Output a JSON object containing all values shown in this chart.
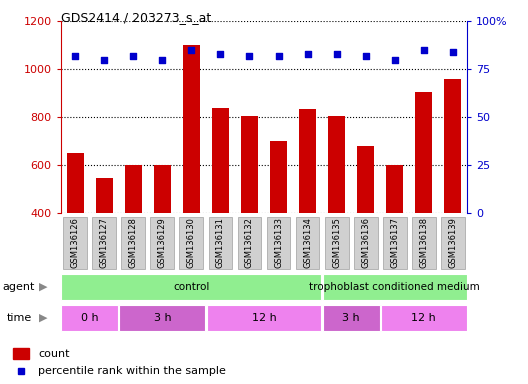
{
  "title": "GDS2414 / 203273_s_at",
  "samples": [
    "GSM136126",
    "GSM136127",
    "GSM136128",
    "GSM136129",
    "GSM136130",
    "GSM136131",
    "GSM136132",
    "GSM136133",
    "GSM136134",
    "GSM136135",
    "GSM136136",
    "GSM136137",
    "GSM136138",
    "GSM136139"
  ],
  "counts": [
    650,
    545,
    600,
    600,
    1100,
    840,
    805,
    700,
    835,
    805,
    680,
    600,
    905,
    960
  ],
  "percentile_ranks": [
    82,
    80,
    82,
    80,
    85,
    83,
    82,
    82,
    83,
    83,
    82,
    80,
    85,
    84
  ],
  "ylim_left": [
    400,
    1200
  ],
  "ylim_right": [
    0,
    100
  ],
  "yticks_left": [
    400,
    600,
    800,
    1000,
    1200
  ],
  "yticks_right": [
    0,
    25,
    50,
    75,
    100
  ],
  "ytick_labels_right": [
    "0",
    "25",
    "50",
    "75",
    "100%"
  ],
  "bar_color": "#CC0000",
  "dot_color": "#0000CC",
  "agent_groups": [
    {
      "label": "control",
      "start": 0,
      "end": 9,
      "color": "#90EE90"
    },
    {
      "label": "trophoblast conditioned medium",
      "start": 9,
      "end": 14,
      "color": "#90EE90"
    }
  ],
  "time_groups": [
    {
      "label": "0 h",
      "start": 0,
      "end": 2,
      "color": "#EE82EE"
    },
    {
      "label": "3 h",
      "start": 2,
      "end": 5,
      "color": "#CC66CC"
    },
    {
      "label": "12 h",
      "start": 5,
      "end": 9,
      "color": "#EE82EE"
    },
    {
      "label": "3 h",
      "start": 9,
      "end": 11,
      "color": "#CC66CC"
    },
    {
      "label": "12 h",
      "start": 11,
      "end": 14,
      "color": "#EE82EE"
    }
  ],
  "agent_row_label": "agent",
  "time_row_label": "time",
  "legend_count_label": "count",
  "legend_pct_label": "percentile rank within the sample",
  "bar_color_legend": "#CC0000",
  "dot_color_legend": "#0000CC",
  "axis_label_color_left": "#CC0000",
  "axis_label_color_right": "#0000CC",
  "label_gray_bg": "#D0D0D0",
  "label_gray_border": "#A0A0A0"
}
